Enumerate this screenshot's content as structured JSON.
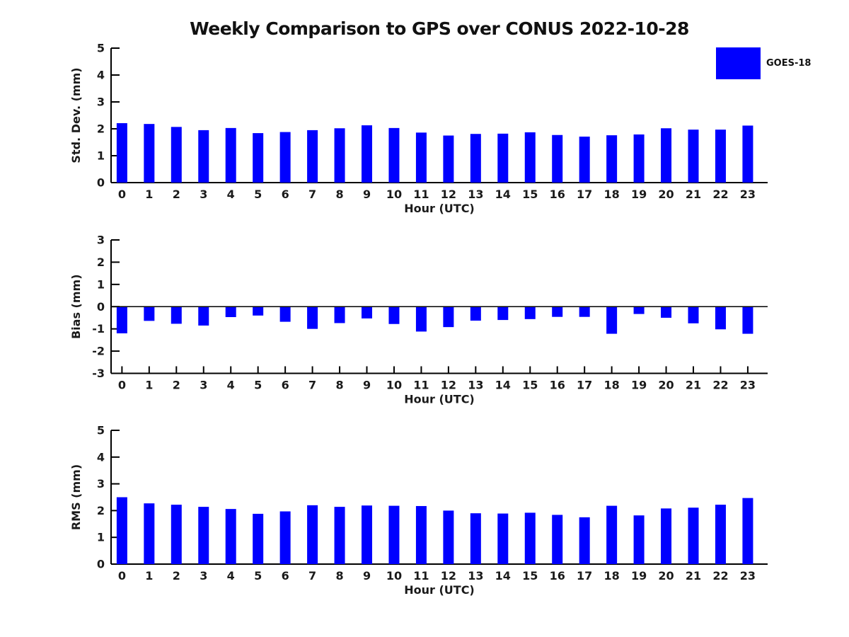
{
  "figure": {
    "title": "Weekly Comparison to GPS over CONUS 2022-10-28",
    "legend": {
      "label": "GOES-18",
      "color": "#0000ff"
    }
  },
  "colors": {
    "bar": "#0000ff",
    "axis": "#000000",
    "text": "#1a1a1a",
    "background": "#ffffff"
  },
  "chart_data": [
    {
      "type": "bar",
      "title": "",
      "ylabel": "Std. Dev. (mm)",
      "xlabel": "Hour (UTC)",
      "categories": [
        "0",
        "1",
        "2",
        "3",
        "4",
        "5",
        "6",
        "7",
        "8",
        "9",
        "10",
        "11",
        "12",
        "13",
        "14",
        "15",
        "16",
        "17",
        "18",
        "19",
        "20",
        "21",
        "22",
        "23"
      ],
      "values": [
        2.21,
        2.18,
        2.07,
        1.95,
        2.03,
        1.84,
        1.88,
        1.95,
        2.02,
        2.13,
        2.03,
        1.86,
        1.75,
        1.81,
        1.82,
        1.87,
        1.77,
        1.71,
        1.76,
        1.79,
        2.02,
        1.97,
        1.97,
        2.12
      ],
      "series_name": "GOES-18",
      "bar_color": "#0000ff",
      "ylim": [
        0,
        5
      ],
      "yticks": [
        0,
        1,
        2,
        3,
        4,
        5
      ],
      "xlim": [
        -0.4,
        23.73
      ],
      "grid": false,
      "legend_position": "top-right-outside"
    },
    {
      "type": "bar",
      "title": "",
      "ylabel": "Bias (mm)",
      "xlabel": "Hour (UTC)",
      "categories": [
        "0",
        "1",
        "2",
        "3",
        "4",
        "5",
        "6",
        "7",
        "8",
        "9",
        "10",
        "11",
        "12",
        "13",
        "14",
        "15",
        "16",
        "17",
        "18",
        "19",
        "20",
        "21",
        "22",
        "23"
      ],
      "values": [
        -1.2,
        -0.64,
        -0.77,
        -0.85,
        -0.47,
        -0.4,
        -0.68,
        -1.0,
        -0.74,
        -0.53,
        -0.78,
        -1.12,
        -0.92,
        -0.63,
        -0.6,
        -0.56,
        -0.46,
        -0.46,
        -1.22,
        -0.33,
        -0.5,
        -0.75,
        -1.02,
        -1.22
      ],
      "series_name": "GOES-18",
      "bar_color": "#0000ff",
      "ylim": [
        -3,
        3
      ],
      "yticks": [
        -3,
        -2,
        -1,
        0,
        1,
        2,
        3
      ],
      "xlim": [
        -0.4,
        23.73
      ],
      "grid": false,
      "zero_line": true,
      "legend_position": "none"
    },
    {
      "type": "bar",
      "title": "",
      "ylabel": "RMS (mm)",
      "xlabel": "Hour (UTC)",
      "categories": [
        "0",
        "1",
        "2",
        "3",
        "4",
        "5",
        "6",
        "7",
        "8",
        "9",
        "10",
        "11",
        "12",
        "13",
        "14",
        "15",
        "16",
        "17",
        "18",
        "19",
        "20",
        "21",
        "22",
        "23"
      ],
      "values": [
        2.5,
        2.27,
        2.22,
        2.14,
        2.06,
        1.88,
        1.97,
        2.2,
        2.14,
        2.19,
        2.18,
        2.17,
        2.0,
        1.9,
        1.89,
        1.92,
        1.84,
        1.75,
        2.18,
        1.82,
        2.08,
        2.11,
        2.22,
        2.47
      ],
      "series_name": "GOES-18",
      "bar_color": "#0000ff",
      "ylim": [
        0,
        5
      ],
      "yticks": [
        0,
        1,
        2,
        3,
        4,
        5
      ],
      "xlim": [
        -0.4,
        23.73
      ],
      "grid": false,
      "legend_position": "none"
    }
  ]
}
